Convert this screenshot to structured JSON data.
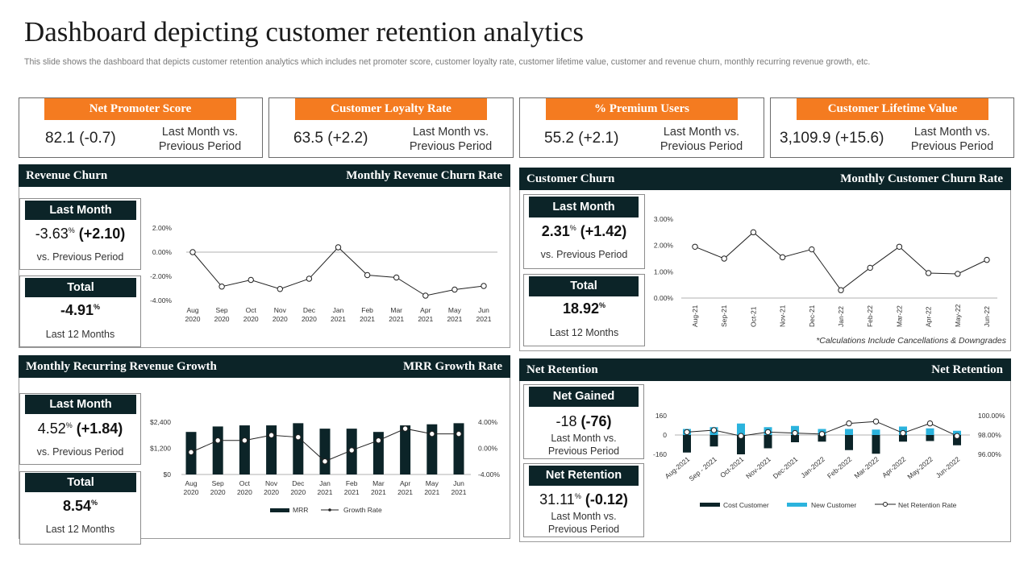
{
  "page": {
    "title": "Dashboard depicting customer retention analytics",
    "subtitle": "This slide shows the dashboard that depicts customer retention analytics which includes net promoter score, customer loyalty rate,  customer lifetime value, customer and revenue churn, monthly recurring revenue growth, etc."
  },
  "colors": {
    "accent": "#f47b20",
    "dark": "#0c2428",
    "cyan": "#2bb3dd"
  },
  "kpis": [
    {
      "title": "Net Promoter  Score",
      "value": "82.1 (-0.7)",
      "compare": "Last Month vs. Previous Period"
    },
    {
      "title": "Customer  Loyalty  Rate",
      "value": "63.5 (+2.2)",
      "compare": "Last Month vs. Previous Period"
    },
    {
      "title": "% Premium  Users",
      "value": "55.2 (+2.1)",
      "compare": "Last Month vs. Previous Period"
    },
    {
      "title": "Customer  Lifetime  Value",
      "value": "3,109.9 (+15.6)",
      "compare": "Last Month vs. Previous Period"
    }
  ],
  "revenue_churn": {
    "title": "Revenue Churn",
    "chart_title": "Monthly  Revenue  Churn  Rate",
    "last_month": {
      "label": "Last Month",
      "value": "-3.63",
      "pct": "%",
      "change": "(+2.10)",
      "sub": "vs.  Previous  Period"
    },
    "total": {
      "label": "Total",
      "value": "-4.91",
      "pct": "%",
      "sub": "Last 12 Months"
    }
  },
  "customer_churn": {
    "title": "Customer  Churn",
    "chart_title": "Monthly  Customer  Churn  Rate",
    "last_month": {
      "label": "Last Month",
      "value": "2.31",
      "pct": "%",
      "change": "(+1.42)",
      "sub": "vs.  Previous  Period"
    },
    "total": {
      "label": "Total",
      "value": "18.92",
      "pct": "%",
      "sub": "Last 12 Months"
    },
    "note": "*Calculations Include Cancellations & Downgrades"
  },
  "mrr": {
    "title": "Monthly  Recurring  Revenue  Growth",
    "chart_title": "MRR Growth  Rate",
    "last_month": {
      "label": "Last Month",
      "value": "4.52",
      "pct": "%",
      "change": "(+1.84)",
      "sub": "vs.  Previous  Period"
    },
    "total": {
      "label": "Total",
      "value": "8.54",
      "pct": "%",
      "sub": "Last 12 Months"
    }
  },
  "net_retention": {
    "title": "Net  Retention",
    "chart_title": "Net  Retention",
    "net_gained": {
      "label": "Net Gained",
      "value": "-18",
      "change": "(-76)",
      "sub1": "Last Month vs.",
      "sub2": "Previous Period"
    },
    "net_retention": {
      "label": "Net Retention",
      "value": "31.11",
      "pct": "%",
      "change": "(-0.12)",
      "sub1": "Last Month vs.",
      "sub2": "Previous Period"
    }
  },
  "chart_data": [
    {
      "id": "revenue-churn-rate",
      "type": "line",
      "title": "Monthly  Revenue  Churn  Rate",
      "categories": [
        "Aug 2020",
        "Sep 2020",
        "Oct 2020",
        "Nov 2020",
        "Dec 2020",
        "Jan 2021",
        "Feb 2021",
        "Mar 2021",
        "Apr 2021",
        "May 2021",
        "Jun 2021"
      ],
      "values": [
        0.0,
        -2.85,
        -2.3,
        -3.05,
        -2.2,
        0.4,
        -1.9,
        -2.1,
        -3.6,
        -3.1,
        -2.8
      ],
      "ylim": [
        -4,
        2
      ],
      "yticks": [
        "2.00%",
        "0.00%",
        "-2.00%",
        "-4.00%"
      ],
      "ytick_values": [
        2,
        0,
        -2,
        -4
      ]
    },
    {
      "id": "customer-churn-rate",
      "type": "line",
      "title": "Monthly  Customer  Churn  Rate",
      "categories": [
        "Aug-21",
        "Sep-21",
        "Oct-21",
        "Nov-21",
        "Dec-21",
        "Jan-22",
        "Feb-22",
        "Mar-22",
        "Apr-22",
        "May-22",
        "Jun-22"
      ],
      "values": [
        1.95,
        1.5,
        2.5,
        1.55,
        1.85,
        0.3,
        1.15,
        1.95,
        0.95,
        0.92,
        1.45
      ],
      "ylim": [
        0,
        3
      ],
      "yticks": [
        "3.00%",
        "2.00%",
        "1.00%",
        "0.00%"
      ],
      "ytick_values": [
        3,
        2,
        1,
        0
      ]
    },
    {
      "id": "mrr-growth",
      "type": "bar+line",
      "title": "MRR Growth  Rate",
      "categories": [
        "Aug 2020",
        "Sep 2020",
        "Oct 2020",
        "Nov 2020",
        "Dec 2020",
        "Jan 2021",
        "Feb 2021",
        "Mar 2021",
        "Apr 2021",
        "May 2021",
        "Jun 2021"
      ],
      "series": [
        {
          "name": "MRR",
          "axis": "left",
          "values": [
            1950,
            2200,
            2250,
            2250,
            2350,
            2100,
            2100,
            1950,
            2250,
            2300,
            2350
          ]
        },
        {
          "name": "Growth Rate",
          "axis": "right",
          "values": [
            -0.6,
            1.2,
            1.2,
            2.0,
            1.7,
            -2.0,
            -0.3,
            1.2,
            3.0,
            2.2,
            2.2
          ]
        }
      ],
      "ylim_left": [
        0,
        2400
      ],
      "yticks_left": [
        "$2,400",
        "$1,200",
        "$0"
      ],
      "ytick_values_left": [
        2400,
        1200,
        0
      ],
      "ylim_right": [
        -4,
        4
      ],
      "yticks_right": [
        "4.00%",
        "0.00%",
        "-4.00%"
      ],
      "ytick_values_right": [
        4,
        0,
        -4
      ],
      "legend": [
        "MRR",
        "Growth Rate"
      ]
    },
    {
      "id": "net-retention",
      "type": "bar+line",
      "title": "Net  Retention",
      "categories": [
        "Aug-2021",
        "Sep - 2021",
        "Oct-2021",
        "Nov-2021",
        "Dec-2021",
        "Jan-2022",
        "Feb-2022",
        "Mar-2022",
        "Apr-2022",
        "May-2022",
        "Jun-2022"
      ],
      "series": [
        {
          "name": "Cost Customer",
          "axis": "left",
          "values": [
            -145,
            -95,
            -160,
            -110,
            -60,
            -55,
            -125,
            -155,
            -55,
            -50,
            -85
          ]
        },
        {
          "name": "New Customer",
          "axis": "left",
          "values": [
            50,
            65,
            95,
            65,
            75,
            50,
            50,
            45,
            70,
            55,
            35
          ]
        },
        {
          "name": "Net Retention Rate",
          "axis": "right",
          "values": [
            98.3,
            98.5,
            97.9,
            98.3,
            98.2,
            98.1,
            99.2,
            99.4,
            98.2,
            99.2,
            97.9
          ]
        }
      ],
      "ylim_left": [
        -160,
        160
      ],
      "yticks_left": [
        "160",
        "0",
        "-160"
      ],
      "ytick_values_left": [
        160,
        0,
        -160
      ],
      "ylim_right": [
        96,
        100
      ],
      "yticks_right": [
        "100.00%",
        "98.00%",
        "96.00%"
      ],
      "ytick_values_right": [
        100,
        98,
        96
      ],
      "legend": [
        "Cost Customer",
        "New Customer",
        "Net Retention Rate"
      ]
    }
  ]
}
